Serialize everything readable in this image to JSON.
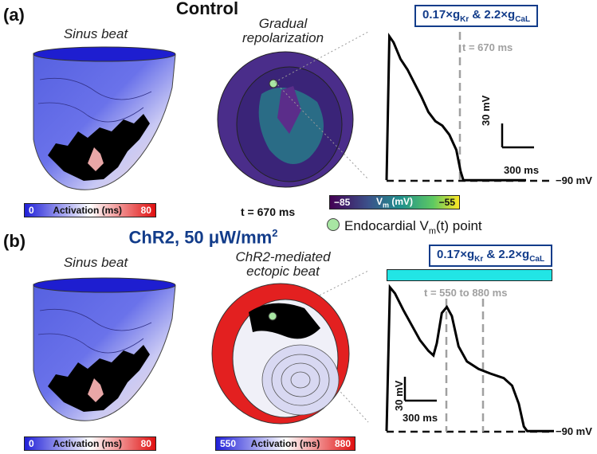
{
  "panel_a": {
    "label": "(a)",
    "title": "Control",
    "sinus_caption": "Sinus beat",
    "middle_caption_1": "Gradual",
    "middle_caption_2": "repolarization",
    "condition_parts": [
      "0.17×g",
      "Kr",
      " & 2.2×g",
      "CaL"
    ],
    "time_marker": "t = 670 ms",
    "time_label": "t = 670 ms",
    "vm_colorbar": {
      "min": "−85",
      "label_prefix": "V",
      "label_sub": "m",
      "label_suffix": " (mV)",
      "max": "−55"
    },
    "activation_colorbar": {
      "min": "0",
      "label": "Activation (ms)",
      "max": "80"
    },
    "scale_mv": "30 mV",
    "scale_ms": "300 ms",
    "rest_label": "−90 mV",
    "legend_prefix": "Endocardial V",
    "legend_sub": "m",
    "legend_suffix": "(t) point",
    "trace": [
      [
        0,
        0.02
      ],
      [
        0.02,
        0.97
      ],
      [
        0.05,
        0.93
      ],
      [
        0.1,
        0.82
      ],
      [
        0.15,
        0.75
      ],
      [
        0.2,
        0.66
      ],
      [
        0.25,
        0.57
      ],
      [
        0.3,
        0.47
      ],
      [
        0.35,
        0.41
      ],
      [
        0.4,
        0.38
      ],
      [
        0.45,
        0.32
      ],
      [
        0.5,
        0.22
      ],
      [
        0.53,
        0.08
      ],
      [
        0.55,
        0.02
      ],
      [
        1,
        0.02
      ]
    ]
  },
  "panel_b": {
    "label": "(b)",
    "title_prefix": "ChR2, 50 μW/mm",
    "title_sup": "2",
    "sinus_caption": "Sinus beat",
    "middle_caption_1": "ChR2-mediated",
    "middle_caption_2": "ectopic beat",
    "condition_parts": [
      "0.17×g",
      "Kr",
      " & 2.2×g",
      "CaL"
    ],
    "time_marker": "t = 550 to 880 ms",
    "activation_colorbar": {
      "min": "0",
      "label": "Activation (ms)",
      "max": "80"
    },
    "ectopic_colorbar": {
      "min": "550",
      "label": "Activation (ms)",
      "max": "880"
    },
    "scale_mv": "30 mV",
    "scale_ms": "300 ms",
    "rest_label": "−90 mV",
    "trace": [
      [
        0,
        0.02
      ],
      [
        0.02,
        0.97
      ],
      [
        0.05,
        0.93
      ],
      [
        0.1,
        0.82
      ],
      [
        0.15,
        0.72
      ],
      [
        0.2,
        0.62
      ],
      [
        0.25,
        0.55
      ],
      [
        0.28,
        0.52
      ],
      [
        0.3,
        0.6
      ],
      [
        0.33,
        0.8
      ],
      [
        0.36,
        0.84
      ],
      [
        0.39,
        0.78
      ],
      [
        0.43,
        0.58
      ],
      [
        0.48,
        0.48
      ],
      [
        0.55,
        0.43
      ],
      [
        0.62,
        0.4
      ],
      [
        0.7,
        0.37
      ],
      [
        0.75,
        0.32
      ],
      [
        0.79,
        0.2
      ],
      [
        0.82,
        0.05
      ],
      [
        0.84,
        0.02
      ],
      [
        1,
        0.02
      ]
    ]
  },
  "colors": {
    "accent_blue": "#123c8a",
    "cyan_bar": "#22e5e5",
    "marker_green": "#a8e6a3"
  }
}
